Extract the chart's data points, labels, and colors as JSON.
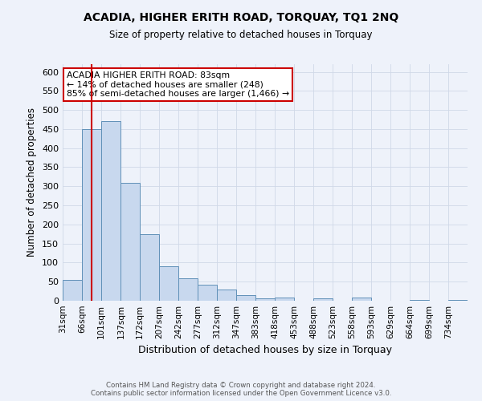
{
  "title": "ACADIA, HIGHER ERITH ROAD, TORQUAY, TQ1 2NQ",
  "subtitle": "Size of property relative to detached houses in Torquay",
  "xlabel": "Distribution of detached houses by size in Torquay",
  "ylabel": "Number of detached properties",
  "bin_labels": [
    "31sqm",
    "66sqm",
    "101sqm",
    "137sqm",
    "172sqm",
    "207sqm",
    "242sqm",
    "277sqm",
    "312sqm",
    "347sqm",
    "383sqm",
    "418sqm",
    "453sqm",
    "488sqm",
    "523sqm",
    "558sqm",
    "593sqm",
    "629sqm",
    "664sqm",
    "699sqm",
    "734sqm"
  ],
  "bin_edges": [
    31,
    66,
    101,
    137,
    172,
    207,
    242,
    277,
    312,
    347,
    383,
    418,
    453,
    488,
    523,
    558,
    593,
    629,
    664,
    699,
    734
  ],
  "bar_heights": [
    55,
    450,
    470,
    310,
    175,
    90,
    58,
    42,
    30,
    15,
    7,
    8,
    0,
    7,
    0,
    8,
    0,
    0,
    3,
    0,
    3
  ],
  "bar_color": "#c8d8ee",
  "bar_edge_color": "#6090b8",
  "grid_color": "#d0d8e8",
  "background_color": "#eef2fa",
  "red_line_x": 83,
  "annotation_title": "ACADIA HIGHER ERITH ROAD: 83sqm",
  "annotation_line1": "← 14% of detached houses are smaller (248)",
  "annotation_line2": "85% of semi-detached houses are larger (1,466) →",
  "annotation_box_color": "#ffffff",
  "annotation_box_edge": "#cc0000",
  "footer_line1": "Contains HM Land Registry data © Crown copyright and database right 2024.",
  "footer_line2": "Contains public sector information licensed under the Open Government Licence v3.0.",
  "ylim": [
    0,
    620
  ],
  "yticks": [
    0,
    50,
    100,
    150,
    200,
    250,
    300,
    350,
    400,
    450,
    500,
    550,
    600
  ]
}
